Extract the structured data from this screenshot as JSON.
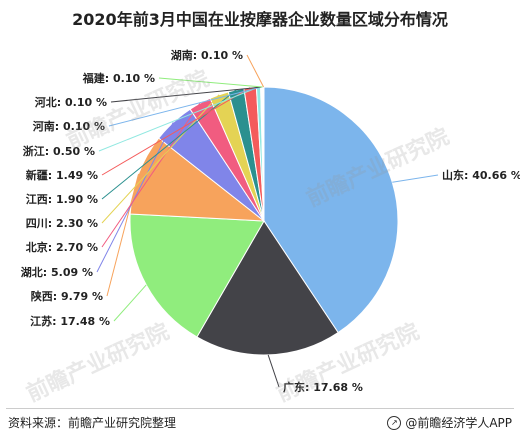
{
  "title": "2020年前3月中国在业按摩器企业数量区域分布情况",
  "footer": {
    "source": "资料来源：前瞻产业研究院整理",
    "brand": "@前瞻经济学人APP"
  },
  "watermark": "前瞻产业研究院",
  "chart_data": {
    "type": "pie",
    "title": "2020年前3月中国在业按摩器企业数量区域分布情况",
    "slices": [
      {
        "name": "山东",
        "value": 40.66,
        "label": "山东: 40.66 %",
        "color": "#7cb5ec"
      },
      {
        "name": "广东",
        "value": 17.68,
        "label": "广东: 17.68 %",
        "color": "#434348"
      },
      {
        "name": "江苏",
        "value": 17.48,
        "label": "江苏: 17.48 %",
        "color": "#90ed7d"
      },
      {
        "name": "陕西",
        "value": 9.79,
        "label": "陕西: 9.79 %",
        "color": "#f7a35c"
      },
      {
        "name": "湖北",
        "value": 5.09,
        "label": "湖北: 5.09 %",
        "color": "#8085e9"
      },
      {
        "name": "北京",
        "value": 2.7,
        "label": "北京: 2.70 %",
        "color": "#f15c80"
      },
      {
        "name": "四川",
        "value": 2.3,
        "label": "四川: 2.30 %",
        "color": "#e4d354"
      },
      {
        "name": "江西",
        "value": 1.9,
        "label": "江西: 1.90 %",
        "color": "#2b908f"
      },
      {
        "name": "新疆",
        "value": 1.49,
        "label": "新疆: 1.49 %",
        "color": "#f45b5b"
      },
      {
        "name": "浙江",
        "value": 0.5,
        "label": "浙江: 0.50 %",
        "color": "#91e8e1"
      },
      {
        "name": "河南",
        "value": 0.1,
        "label": "河南: 0.10 %",
        "color": "#7cb5ec"
      },
      {
        "name": "河北",
        "value": 0.1,
        "label": "河北: 0.10 %",
        "color": "#434348"
      },
      {
        "name": "福建",
        "value": 0.1,
        "label": "福建: 0.10 %",
        "color": "#90ed7d"
      },
      {
        "name": "湖南",
        "value": 0.1,
        "label": "湖南: 0.10 %",
        "color": "#f7a35c"
      }
    ]
  }
}
